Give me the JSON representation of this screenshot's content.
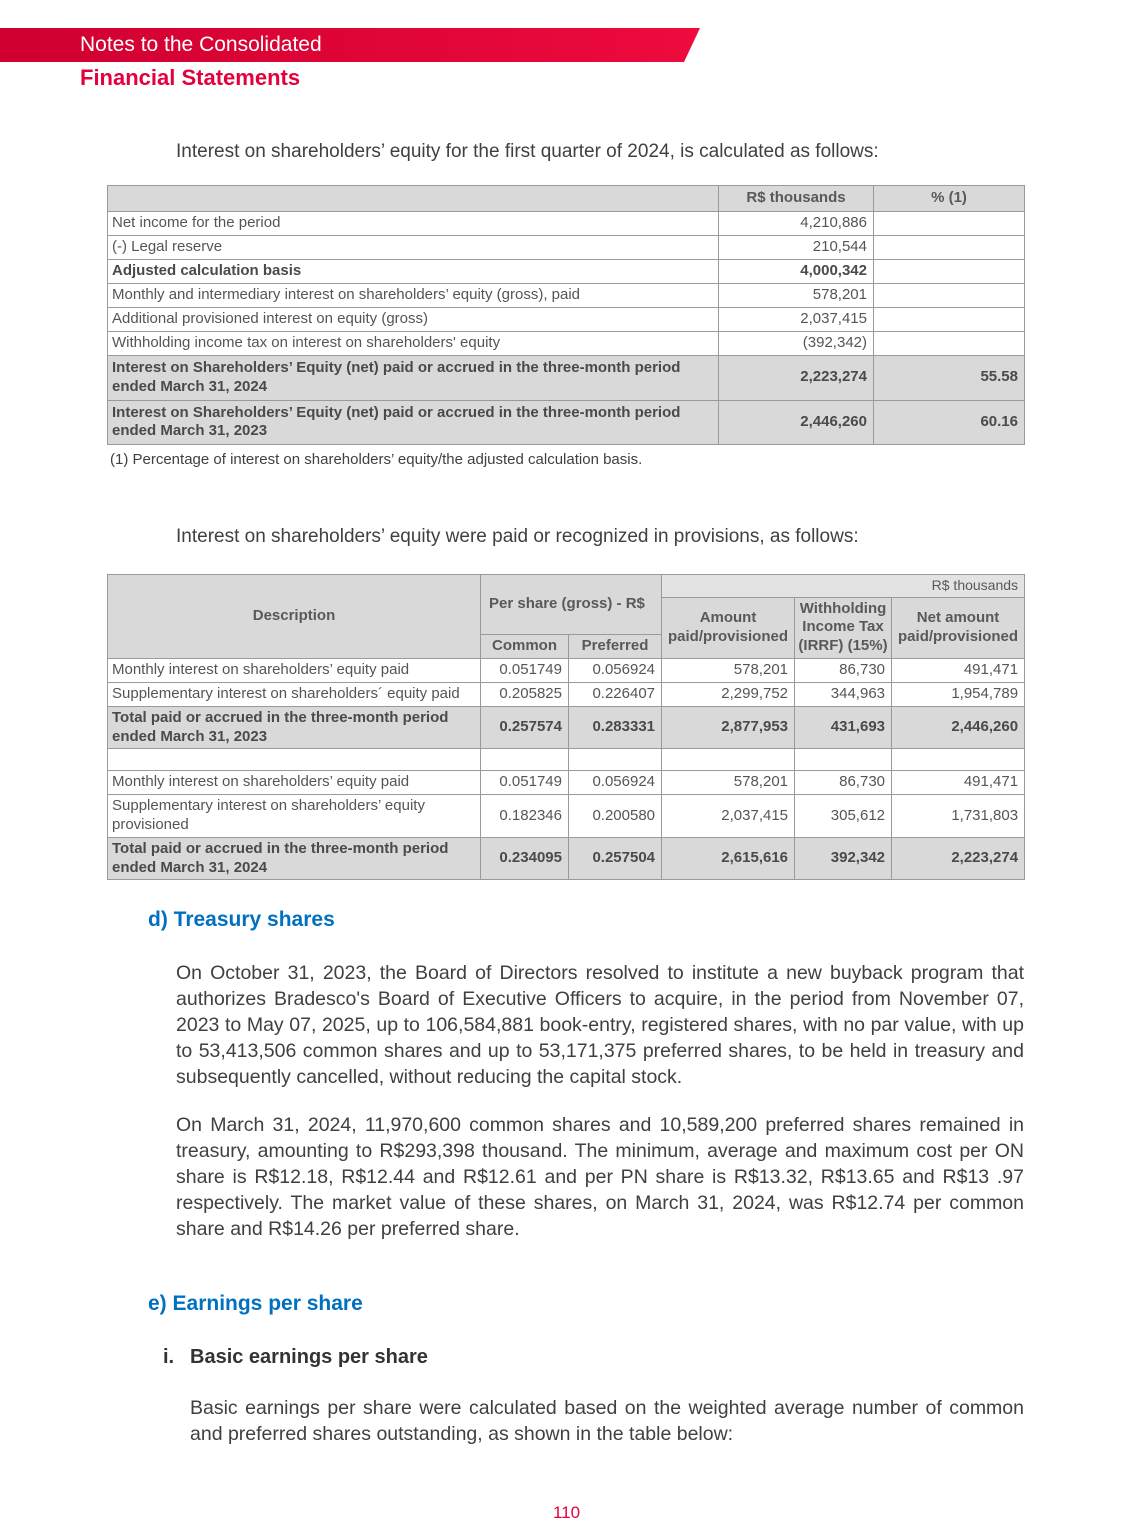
{
  "colors": {
    "accent_red": "#e4003a",
    "heading_blue": "#0070c0",
    "table_header_gray": "#d9d9d9"
  },
  "header": {
    "banner_title": "Notes to the Consolidated",
    "subtitle": "Financial Statements"
  },
  "intro1": "Interest on shareholders’ equity for the first quarter of 2024, is calculated as follows:",
  "table1": {
    "headers": {
      "value": "R$ thousands",
      "pct": "% (1)"
    },
    "rows": [
      {
        "label": "Net income for the period",
        "value": "4,210,886",
        "pct": ""
      },
      {
        "label": "(-) Legal reserve",
        "value": "210,544",
        "pct": ""
      },
      {
        "label": "Adjusted calculation basis",
        "value": "4,000,342",
        "pct": ""
      },
      {
        "label": "Monthly and intermediary interest on shareholders’ equity (gross), paid",
        "value": "578,201",
        "pct": ""
      },
      {
        "label": "Additional provisioned interest on equity (gross)",
        "value": "2,037,415",
        "pct": ""
      },
      {
        "label": "Withholding income tax on interest on shareholders' equity",
        "value": "(392,342)",
        "pct": ""
      },
      {
        "label": "Interest on Shareholders’ Equity (net) paid or accrued in the three-month period ended March 31, 2024",
        "value": "2,223,274",
        "pct": "55.58"
      },
      {
        "label": "Interest on Shareholders’ Equity (net) paid or accrued in the three-month period ended March 31, 2023",
        "value": "2,446,260",
        "pct": "60.16"
      }
    ],
    "footnote": "(1) Percentage of interest on shareholders’ equity/the adjusted calculation basis."
  },
  "intro2": "Interest on shareholders’ equity were paid or recognized in provisions, as follows:",
  "table2": {
    "units_label": "R$ thousands",
    "headers": {
      "description": "Description",
      "per_share": "Per share (gross) - R$",
      "common": "Common",
      "preferred": "Preferred",
      "amount": "Amount paid/provisioned",
      "withholding": "Withholding Income Tax (IRRF) (15%)",
      "net": "Net amount paid/provisioned"
    },
    "rows": [
      {
        "label": "Monthly interest on shareholders’ equity paid",
        "common": "0.051749",
        "preferred": "0.056924",
        "amount": "578,201",
        "withholding": "86,730",
        "net": "491,471"
      },
      {
        "label": "Supplementary interest on shareholders´ equity paid",
        "common": "0.205825",
        "preferred": "0.226407",
        "amount": "2,299,752",
        "withholding": "344,963",
        "net": "1,954,789"
      },
      {
        "label": "Total paid or accrued in the three-month period ended March 31, 2023",
        "common": "0.257574",
        "preferred": "0.283331",
        "amount": "2,877,953",
        "withholding": "431,693",
        "net": "2,446,260"
      },
      {
        "label": "Monthly interest on shareholders’ equity paid",
        "common": "0.051749",
        "preferred": "0.056924",
        "amount": "578,201",
        "withholding": "86,730",
        "net": "491,471"
      },
      {
        "label": "Supplementary interest on shareholders’ equity provisioned",
        "common": "0.182346",
        "preferred": "0.200580",
        "amount": "2,037,415",
        "withholding": "305,612",
        "net": "1,731,803"
      },
      {
        "label": "Total paid or accrued in the three-month period ended March 31, 2024",
        "common": "0.234095",
        "preferred": "0.257504",
        "amount": "2,615,616",
        "withholding": "392,342",
        "net": "2,223,274"
      }
    ]
  },
  "section_d": {
    "heading": "d) Treasury shares",
    "para1": "On October 31, 2023, the Board of Directors resolved to institute a new buyback program that authorizes Bradesco's Board of Executive Officers to acquire, in the period from November 07, 2023 to May 07, 2025, up to 106,584,881 book-entry, registered shares, with no par value, with up to 53,413,506 common shares and up to 53,171,375 preferred shares, to be held in treasury and subsequently cancelled, without reducing the capital stock.",
    "para2": "On March 31, 2024, 11,970,600 common shares and 10,589,200 preferred shares remained in treasury, amounting to R$293,398 thousand. The minimum, average and maximum cost per ON share is R$12.18, R$12.44 and R$12.61 and per PN share is R$13.32, R$13.65 and R$13 .97 respectively. The market value of these shares, on March 31, 2024, was R$12.74 per common share and R$14.26 per preferred share."
  },
  "section_e": {
    "heading": "e) Earnings per share",
    "item_marker": "i.",
    "item_title": "Basic earnings per share",
    "para": "Basic earnings per share were calculated based on the weighted average number of common and preferred shares outstanding, as shown in the table below:"
  },
  "footer": {
    "page_number": "110"
  }
}
